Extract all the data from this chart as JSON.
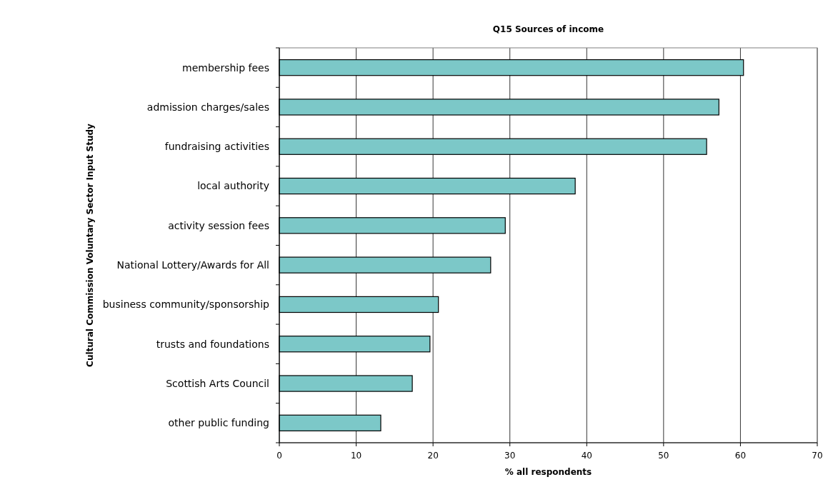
{
  "chart_data": {
    "type": "bar",
    "orientation": "horizontal",
    "title": "Q15 Sources of income",
    "xlabel": "% all respondents",
    "ylabel": "Cultural Commission Voluntary Sector Input Study",
    "categories": [
      "membership fees",
      "admission charges/sales",
      "fundraising activities",
      "local authority",
      "activity session fees",
      "National Lottery/Awards for All",
      "business community/sponsorship",
      "trusts and foundations",
      "Scottish Arts Council",
      "other public funding"
    ],
    "values": [
      60.4,
      57.2,
      55.6,
      38.5,
      29.4,
      27.5,
      20.7,
      19.6,
      17.3,
      13.2
    ],
    "color": "#7cc8c8",
    "xlim": [
      0,
      70
    ],
    "xticks": [
      0,
      10,
      20,
      30,
      40,
      50,
      60,
      70
    ],
    "grid": "x"
  }
}
